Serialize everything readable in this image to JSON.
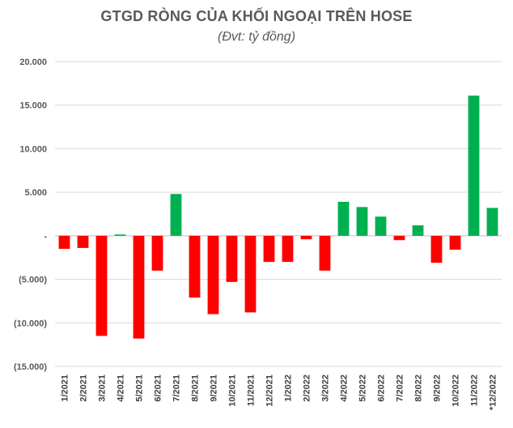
{
  "chart_data": {
    "type": "bar",
    "title": "GTGD RÒNG CỦA KHỐI NGOẠI TRÊN HOSE",
    "subtitle": "(Đvt: tỷ đồng)",
    "xlabel": "",
    "ylabel": "",
    "ylim": [
      -15000,
      20000
    ],
    "yticks": [
      20000,
      15000,
      10000,
      5000,
      0,
      -5000,
      -10000,
      -15000
    ],
    "ytick_labels": [
      "20.000",
      "15.000",
      "10.000",
      "5.000",
      "-",
      "(5.000)",
      "(10.000)",
      "(15.000)"
    ],
    "categories": [
      "1/2021",
      "2/2021",
      "3/2021",
      "4/2021",
      "5/2021",
      "6/2021",
      "7/2021",
      "8/2021",
      "9/2021",
      "10/2021",
      "11/2021",
      "12/2021",
      "1/2022",
      "2/2022",
      "3/2022",
      "4/2022",
      "5/2022",
      "6/2022",
      "7/2022",
      "8/2022",
      "9/2022",
      "10/2022",
      "11/2022",
      "*12/2022"
    ],
    "values": [
      -1500,
      -1400,
      -11500,
      150,
      -11800,
      -4000,
      4800,
      -7100,
      -9000,
      -5300,
      -8800,
      -3000,
      -3000,
      -400,
      -4000,
      3900,
      3300,
      2200,
      -500,
      1200,
      -3100,
      -1600,
      16100,
      3200
    ],
    "grid": true,
    "colors": {
      "positive": "#00b050",
      "negative": "#ff0000",
      "grid": "#d9d9d9",
      "axis": "#bfbfbf"
    }
  }
}
